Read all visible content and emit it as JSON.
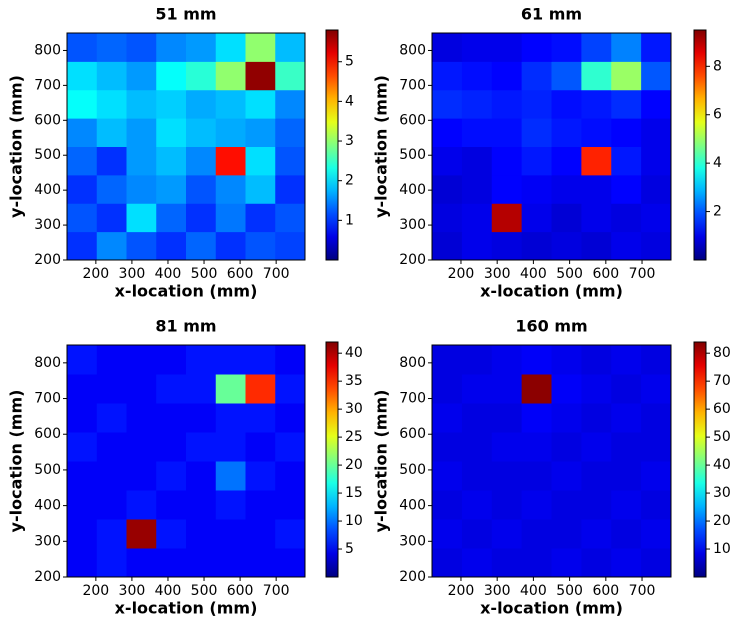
{
  "chart_data": [
    {
      "type": "heatmap",
      "title": "51 mm",
      "xlabel": "x-location (mm)",
      "ylabel": "y-location (mm)",
      "colormap": "jet",
      "xlim": [
        120,
        780
      ],
      "ylim": [
        200,
        850
      ],
      "xticks": [
        200,
        300,
        400,
        500,
        600,
        700
      ],
      "yticks": [
        200,
        300,
        400,
        500,
        600,
        700,
        800
      ],
      "clim": [
        0,
        5.8
      ],
      "cticks": [
        1,
        2,
        3,
        4,
        5
      ],
      "z": [
        [
          1.0,
          1.5,
          1.2,
          1.0,
          1.3,
          1.0,
          1.2,
          1.1
        ],
        [
          1.2,
          1.0,
          2.0,
          1.3,
          1.0,
          1.4,
          1.0,
          1.2
        ],
        [
          1.0,
          1.3,
          1.5,
          1.6,
          1.2,
          1.5,
          1.8,
          1.0
        ],
        [
          1.3,
          1.0,
          1.6,
          1.8,
          1.5,
          5.0,
          2.0,
          1.2
        ],
        [
          1.5,
          1.8,
          1.6,
          2.0,
          1.8,
          1.7,
          1.6,
          1.3
        ],
        [
          2.2,
          2.0,
          1.8,
          1.9,
          1.7,
          1.8,
          2.0,
          1.5
        ],
        [
          2.0,
          1.8,
          1.6,
          2.2,
          2.4,
          3.0,
          5.7,
          2.5
        ],
        [
          1.2,
          1.3,
          1.2,
          1.5,
          1.6,
          2.0,
          3.0,
          1.8
        ]
      ]
    },
    {
      "type": "heatmap",
      "title": "61 mm",
      "xlabel": "x-location (mm)",
      "ylabel": "y-location (mm)",
      "colormap": "jet",
      "xlim": [
        120,
        780
      ],
      "ylim": [
        200,
        850
      ],
      "xticks": [
        200,
        300,
        400,
        500,
        600,
        700
      ],
      "yticks": [
        200,
        300,
        400,
        500,
        600,
        700,
        800
      ],
      "clim": [
        0,
        9.5
      ],
      "cticks": [
        2,
        4,
        6,
        8
      ],
      "z": [
        [
          0.8,
          1.0,
          0.9,
          0.8,
          0.9,
          0.8,
          1.0,
          0.9
        ],
        [
          0.9,
          1.0,
          9.0,
          1.0,
          0.8,
          1.0,
          0.9,
          1.0
        ],
        [
          0.8,
          0.9,
          1.2,
          1.1,
          1.0,
          1.0,
          1.2,
          0.9
        ],
        [
          1.0,
          0.9,
          1.2,
          1.4,
          1.2,
          8.0,
          1.4,
          1.0
        ],
        [
          1.2,
          1.3,
          1.3,
          1.6,
          1.4,
          1.3,
          1.2,
          1.0
        ],
        [
          1.6,
          1.5,
          1.4,
          1.5,
          1.3,
          1.4,
          1.6,
          1.2
        ],
        [
          1.4,
          1.3,
          1.2,
          1.6,
          2.0,
          4.0,
          5.0,
          2.0
        ],
        [
          0.9,
          1.0,
          1.0,
          1.2,
          1.3,
          1.8,
          2.4,
          1.4
        ]
      ]
    },
    {
      "type": "heatmap",
      "title": "81 mm",
      "xlabel": "x-location (mm)",
      "ylabel": "y-location (mm)",
      "colormap": "jet",
      "xlim": [
        120,
        780
      ],
      "ylim": [
        200,
        850
      ],
      "xticks": [
        200,
        300,
        400,
        500,
        600,
        700
      ],
      "yticks": [
        200,
        300,
        400,
        500,
        600,
        700,
        800
      ],
      "clim": [
        0,
        42
      ],
      "cticks": [
        5,
        10,
        15,
        20,
        25,
        30,
        35,
        40
      ],
      "z": [
        [
          5,
          6,
          5,
          5,
          5,
          5,
          5,
          5
        ],
        [
          5,
          6,
          41,
          6,
          5,
          5,
          5,
          6
        ],
        [
          5,
          5,
          6,
          5,
          5,
          6,
          5,
          5
        ],
        [
          5,
          5,
          5,
          6,
          5,
          10,
          6,
          5
        ],
        [
          6,
          5,
          5,
          5,
          6,
          6,
          5,
          6
        ],
        [
          5,
          6,
          5,
          5,
          5,
          6,
          6,
          5
        ],
        [
          5,
          5,
          5,
          6,
          6,
          20,
          35,
          6
        ],
        [
          6,
          5,
          5,
          5,
          6,
          6,
          6,
          5
        ]
      ]
    },
    {
      "type": "heatmap",
      "title": "160 mm",
      "xlabel": "x-location (mm)",
      "ylabel": "y-location (mm)",
      "colormap": "jet",
      "xlim": [
        120,
        780
      ],
      "ylim": [
        200,
        850
      ],
      "xticks": [
        200,
        300,
        400,
        500,
        600,
        700
      ],
      "yticks": [
        200,
        300,
        400,
        500,
        600,
        700,
        800
      ],
      "clim": [
        0,
        84
      ],
      "cticks": [
        10,
        20,
        30,
        40,
        50,
        60,
        70,
        80
      ],
      "z": [
        [
          8,
          9,
          8,
          8,
          9,
          8,
          9,
          8
        ],
        [
          9,
          8,
          9,
          8,
          8,
          9,
          8,
          9
        ],
        [
          8,
          9,
          8,
          9,
          8,
          8,
          9,
          8
        ],
        [
          9,
          8,
          8,
          8,
          9,
          8,
          8,
          9
        ],
        [
          8,
          8,
          9,
          9,
          8,
          9,
          8,
          8
        ],
        [
          9,
          8,
          8,
          10,
          9,
          8,
          9,
          8
        ],
        [
          8,
          9,
          9,
          83,
          10,
          9,
          8,
          9
        ],
        [
          8,
          8,
          9,
          10,
          9,
          8,
          9,
          8
        ]
      ]
    }
  ]
}
